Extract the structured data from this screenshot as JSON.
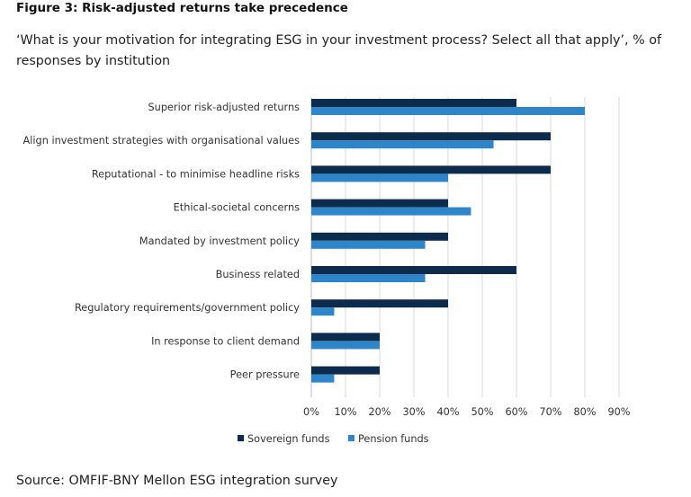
{
  "figure": {
    "title": "Figure 3: Risk-adjusted returns take precedence",
    "subtitle": "‘What is your motivation for integrating ESG in your investment process? Select all that apply’, % of responses by institution",
    "source": "Source: OMFIF-BNY Mellon ESG integration survey"
  },
  "colors": {
    "sovereign": "#0d2c4b",
    "pension": "#2e86c8",
    "grid": "#d9d9d9",
    "axis": "#bfbfbf"
  },
  "chart_data": {
    "type": "bar",
    "orientation": "horizontal",
    "categories": [
      "Superior risk-adjusted returns",
      "Align investment strategies with organisational values",
      "Reputational - to minimise headline risks",
      "Ethical-societal concerns",
      "Mandated by investment policy",
      "Business related",
      "Regulatory requirements/government policy",
      "In response to client demand",
      "Peer pressure"
    ],
    "series": [
      {
        "name": "Sovereign funds",
        "values": [
          60,
          70,
          70,
          40,
          40,
          60,
          40,
          20,
          20
        ]
      },
      {
        "name": "Pension funds",
        "values": [
          80,
          53.3,
          40,
          46.7,
          33.3,
          33.3,
          6.7,
          20,
          6.7
        ]
      }
    ],
    "xlim": [
      0,
      90
    ],
    "xticks": [
      "0%",
      "10%",
      "20%",
      "30%",
      "40%",
      "50%",
      "60%",
      "70%",
      "80%",
      "90%"
    ],
    "grid": "vertical",
    "legend_position": "bottom"
  }
}
